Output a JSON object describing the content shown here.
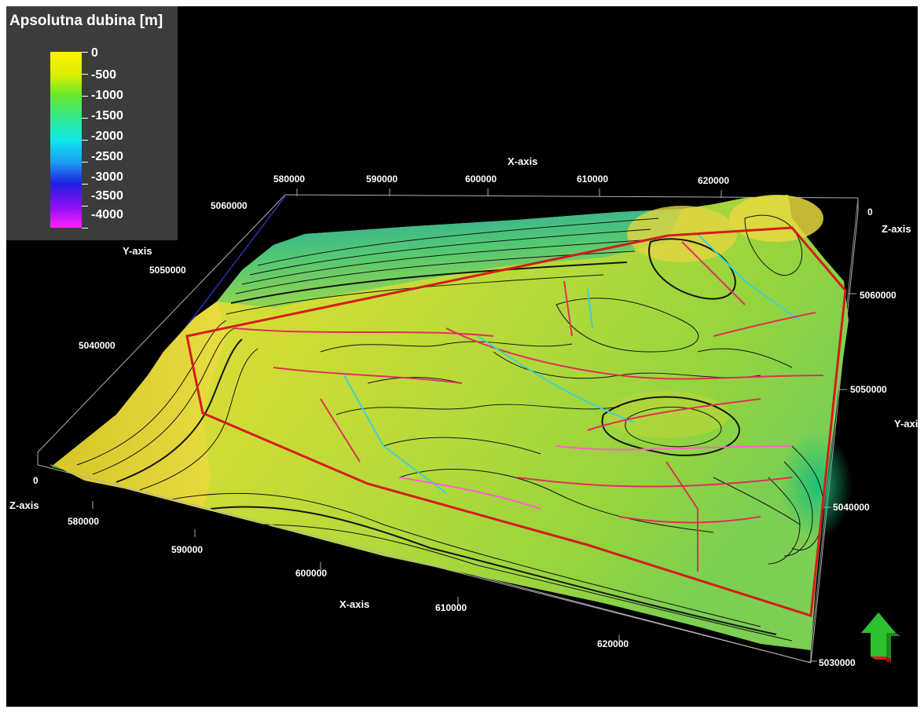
{
  "legend": {
    "title": "Apsolutna dubina [m]",
    "labels": [
      "0",
      "-500",
      "-1000",
      "-1500",
      "-2000",
      "-2500",
      "-3000",
      "-3500",
      "-4000"
    ],
    "colors": [
      "#fff200",
      "#d8f000",
      "#66e830",
      "#30e890",
      "#10e8e8",
      "#1c9cf4",
      "#2020e0",
      "#8a10f0",
      "#ff20ff"
    ]
  },
  "axes": {
    "x_title": "X-axis",
    "y_title": "Y-axis",
    "z_title": "Z-axis",
    "x_ticks": [
      "580000",
      "590000",
      "600000",
      "610000",
      "620000"
    ],
    "y_ticks": [
      "5030000",
      "5040000",
      "5050000",
      "5060000"
    ],
    "z_tick": "0"
  },
  "colors": {
    "background": "#000000",
    "surface_high": "#e7d93a",
    "surface_mid": "#a8d838",
    "surface_low": "#2fbf8c",
    "contour": "#141414",
    "boundary": "#d41c1c",
    "fault_red": "#e0305a",
    "fault_cyan": "#40d0d0",
    "box": "#b0b0b0"
  },
  "orientation": {
    "icon": "north-arrow-icon"
  }
}
